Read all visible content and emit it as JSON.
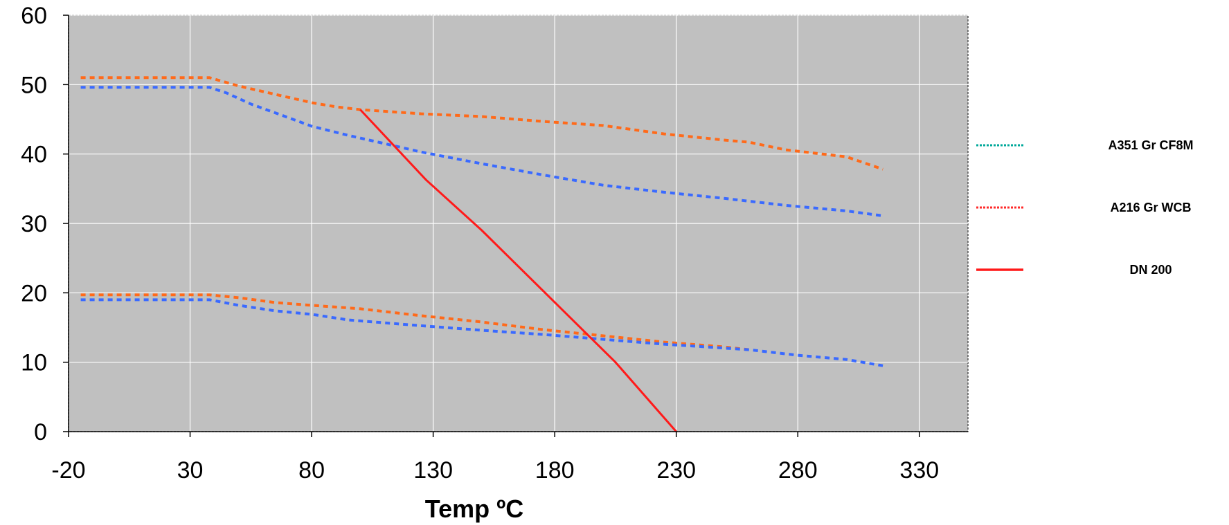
{
  "chart_data": {
    "type": "line",
    "title": "",
    "xlabel": "Temp ºC",
    "ylabel": "",
    "xlim": [
      -20,
      350
    ],
    "ylim": [
      0,
      60
    ],
    "x_ticks": [
      "-20",
      "30",
      "80",
      "130",
      "180",
      "230",
      "280",
      "330"
    ],
    "y_ticks": [
      "0",
      "10",
      "20",
      "30",
      "40",
      "50",
      "60"
    ],
    "grid": true,
    "plot_background": "#c0c0c0",
    "legend_position": "right",
    "legend": [
      {
        "label": "A351 Gr CF8M",
        "color": "#00a89a",
        "style": "dotted"
      },
      {
        "label": "A216 Gr WCB",
        "color": "#ff2a2a",
        "style": "dotted"
      },
      {
        "label": "DN 200",
        "color": "#ff1a1a",
        "style": "solid"
      }
    ],
    "series": [
      {
        "color": "#ff6a1a",
        "style": "dashed",
        "points": [
          [
            -15,
            51.0
          ],
          [
            20,
            51.0
          ],
          [
            38,
            51.0
          ],
          [
            50,
            49.8
          ],
          [
            65,
            48.6
          ],
          [
            80,
            47.4
          ],
          [
            90,
            46.8
          ],
          [
            100,
            46.4
          ],
          [
            125,
            45.8
          ],
          [
            150,
            45.4
          ],
          [
            175,
            44.7
          ],
          [
            200,
            44.1
          ],
          [
            225,
            42.9
          ],
          [
            250,
            42.0
          ],
          [
            260,
            41.7
          ],
          [
            275,
            40.6
          ],
          [
            300,
            39.6
          ],
          [
            315,
            37.8
          ]
        ]
      },
      {
        "color": "#3a6aff",
        "style": "dashed",
        "points": [
          [
            -15,
            49.6
          ],
          [
            20,
            49.6
          ],
          [
            38,
            49.6
          ],
          [
            45,
            48.8
          ],
          [
            55,
            47.2
          ],
          [
            70,
            45.3
          ],
          [
            80,
            44.0
          ],
          [
            95,
            42.7
          ],
          [
            110,
            41.5
          ],
          [
            125,
            40.3
          ],
          [
            150,
            38.6
          ],
          [
            175,
            37.0
          ],
          [
            200,
            35.5
          ],
          [
            225,
            34.5
          ],
          [
            250,
            33.6
          ],
          [
            260,
            33.2
          ],
          [
            275,
            32.6
          ],
          [
            300,
            31.8
          ],
          [
            315,
            31.1
          ]
        ]
      },
      {
        "color": "#ff6a1a",
        "style": "dashed",
        "points": [
          [
            -15,
            19.7
          ],
          [
            20,
            19.7
          ],
          [
            38,
            19.7
          ],
          [
            50,
            19.3
          ],
          [
            65,
            18.6
          ],
          [
            80,
            18.2
          ],
          [
            100,
            17.7
          ],
          [
            125,
            16.7
          ],
          [
            150,
            15.8
          ],
          [
            175,
            14.7
          ],
          [
            200,
            13.8
          ],
          [
            225,
            12.9
          ],
          [
            250,
            12.2
          ],
          [
            260,
            11.8
          ]
        ]
      },
      {
        "color": "#3a6aff",
        "style": "dashed",
        "points": [
          [
            -15,
            19.0
          ],
          [
            20,
            19.0
          ],
          [
            38,
            19.0
          ],
          [
            50,
            18.2
          ],
          [
            65,
            17.4
          ],
          [
            80,
            16.9
          ],
          [
            95,
            16.1
          ],
          [
            120,
            15.4
          ],
          [
            150,
            14.6
          ],
          [
            175,
            14.0
          ],
          [
            200,
            13.3
          ],
          [
            225,
            12.6
          ],
          [
            260,
            11.8
          ],
          [
            280,
            11.0
          ],
          [
            300,
            10.4
          ],
          [
            315,
            9.5
          ]
        ]
      },
      {
        "color": "#ff1a1a",
        "style": "solid",
        "points": [
          [
            100,
            46.4
          ],
          [
            127,
            36.3
          ],
          [
            150,
            29.0
          ],
          [
            205,
            10.0
          ],
          [
            230,
            0.0
          ]
        ]
      }
    ]
  }
}
